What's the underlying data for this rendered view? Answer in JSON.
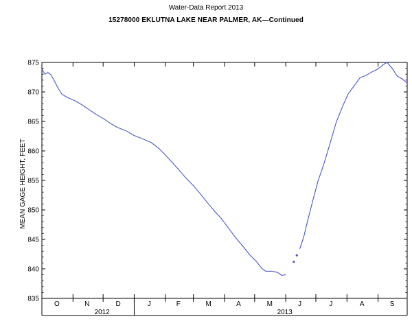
{
  "header": {
    "report": "Water-Data Report 2013",
    "station": "15278000 EKLUTNA LAKE NEAR PALMER, AK—Continued"
  },
  "colors": {
    "series": "#4a56c8",
    "axis": "#000000"
  },
  "chart_data": {
    "type": "line",
    "title": "",
    "ylabel": "MEAN GAGE HEIGHT, FEET",
    "xlabel": "",
    "ylim": [
      835,
      875
    ],
    "yticks": [
      835,
      840,
      845,
      850,
      855,
      860,
      865,
      870,
      875
    ],
    "xlim": [
      "2012-10-01",
      "2013-09-30"
    ],
    "month_labels": [
      {
        "label": "O",
        "date": "2012-10-16"
      },
      {
        "label": "N",
        "date": "2012-11-15"
      },
      {
        "label": "D",
        "date": "2012-12-16"
      },
      {
        "label": "J",
        "date": "2013-01-16"
      },
      {
        "label": "F",
        "date": "2013-02-14"
      },
      {
        "label": "M",
        "date": "2013-03-16"
      },
      {
        "label": "A",
        "date": "2013-04-15"
      },
      {
        "label": "M",
        "date": "2013-05-16"
      },
      {
        "label": "J",
        "date": "2013-06-15"
      },
      {
        "label": "J",
        "date": "2013-07-16"
      },
      {
        "label": "A",
        "date": "2013-08-16"
      },
      {
        "label": "S",
        "date": "2013-09-15"
      }
    ],
    "month_boundaries": [
      "2012-11-01",
      "2012-12-01",
      "2013-01-01",
      "2013-02-01",
      "2013-03-01",
      "2013-04-01",
      "2013-05-01",
      "2013-06-01",
      "2013-07-01",
      "2013-08-01",
      "2013-09-01"
    ],
    "year_labels": [
      {
        "label": "2012",
        "date": "2012-11-30"
      },
      {
        "label": "2013",
        "date": "2013-05-31"
      }
    ],
    "year_divider": "2013-01-01",
    "grid": false,
    "series": [
      {
        "segments": [
          [
            [
              "2012-10-01",
              873.9
            ],
            [
              "2012-10-04",
              873.0
            ],
            [
              "2012-10-07",
              873.3
            ],
            [
              "2012-10-10",
              872.9
            ],
            [
              "2012-10-13",
              872.0
            ],
            [
              "2012-10-17",
              870.7
            ],
            [
              "2012-10-21",
              869.6
            ],
            [
              "2012-10-27",
              869.0
            ],
            [
              "2012-11-03",
              868.5
            ],
            [
              "2012-11-10",
              867.8
            ],
            [
              "2012-11-17",
              867.0
            ],
            [
              "2012-11-24",
              866.2
            ],
            [
              "2012-12-01",
              865.5
            ],
            [
              "2012-12-08",
              864.7
            ],
            [
              "2012-12-15",
              864.0
            ],
            [
              "2012-12-24",
              863.4
            ],
            [
              "2013-01-01",
              862.6
            ],
            [
              "2013-01-10",
              862.0
            ],
            [
              "2013-01-18",
              861.4
            ],
            [
              "2013-01-25",
              860.5
            ],
            [
              "2013-02-01",
              859.3
            ],
            [
              "2013-02-07",
              858.2
            ],
            [
              "2013-02-14",
              856.9
            ],
            [
              "2013-02-21",
              855.5
            ],
            [
              "2013-03-01",
              854.1
            ],
            [
              "2013-03-08",
              852.7
            ],
            [
              "2013-03-15",
              851.2
            ],
            [
              "2013-03-22",
              849.8
            ],
            [
              "2013-03-29",
              848.5
            ],
            [
              "2013-04-05",
              846.9
            ],
            [
              "2013-04-12",
              845.3
            ],
            [
              "2013-04-19",
              843.9
            ],
            [
              "2013-04-26",
              842.4
            ],
            [
              "2013-05-03",
              841.2
            ],
            [
              "2013-05-08",
              840.1
            ],
            [
              "2013-05-12",
              839.6
            ],
            [
              "2013-05-18",
              839.6
            ],
            [
              "2013-05-24",
              839.4
            ],
            [
              "2013-05-28",
              838.9
            ],
            [
              "2013-06-01",
              839.0
            ]
          ],
          [
            [
              "2013-06-15",
              843.4
            ],
            [
              "2013-06-19",
              845.5
            ],
            [
              "2013-06-23",
              848.3
            ],
            [
              "2013-06-28",
              851.6
            ],
            [
              "2013-07-03",
              854.8
            ],
            [
              "2013-07-09",
              857.8
            ],
            [
              "2013-07-15",
              861.2
            ],
            [
              "2013-07-21",
              864.7
            ],
            [
              "2013-07-27",
              867.3
            ],
            [
              "2013-08-02",
              869.6
            ],
            [
              "2013-08-08",
              871.0
            ],
            [
              "2013-08-14",
              872.4
            ],
            [
              "2013-08-20",
              872.8
            ],
            [
              "2013-08-26",
              873.4
            ],
            [
              "2013-09-01",
              873.9
            ],
            [
              "2013-09-06",
              874.6
            ],
            [
              "2013-09-10",
              875.0
            ],
            [
              "2013-09-15",
              874.0
            ],
            [
              "2013-09-20",
              872.7
            ],
            [
              "2013-09-25",
              872.2
            ],
            [
              "2013-09-30",
              871.5
            ]
          ]
        ],
        "points": [
          [
            "2013-06-09",
            841.2
          ],
          [
            "2013-06-12",
            842.3
          ]
        ]
      }
    ]
  }
}
